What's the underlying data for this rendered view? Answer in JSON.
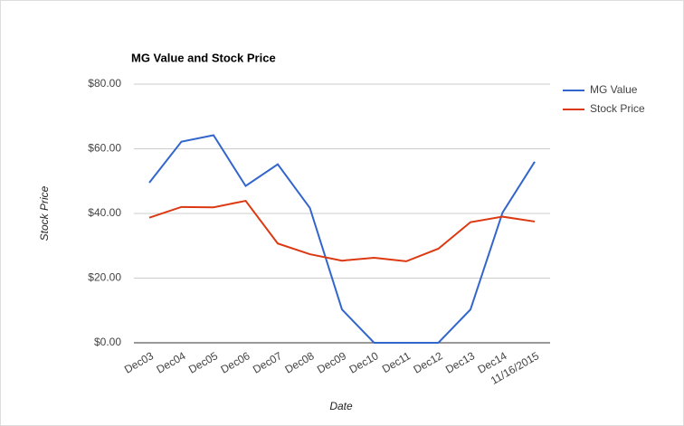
{
  "chart_data": {
    "type": "line",
    "title": "MG Value and Stock Price",
    "x_label": "Date",
    "y_label": "Stock Price",
    "categories": [
      "Dec03",
      "Dec04",
      "Dec05",
      "Dec06",
      "Dec07",
      "Dec08",
      "Dec09",
      "Dec10",
      "Dec11",
      "Dec12",
      "Dec13",
      "Dec14",
      "11/16/2015"
    ],
    "series": [
      {
        "name": "MG Value",
        "color": "#3366cc",
        "values": [
          49.5,
          62.2,
          64.2,
          48.5,
          55.2,
          41.7,
          10.3,
          0,
          0,
          0,
          10.3,
          40.3,
          56
        ]
      },
      {
        "name": "Stock Price",
        "color": "#dc3912",
        "values": [
          38.7,
          42.0,
          41.9,
          43.9,
          30.7,
          27.4,
          25.4,
          26.3,
          25.2,
          29.1,
          37.3,
          39.0,
          37.5
        ]
      }
    ],
    "ylim": [
      0,
      80
    ],
    "yticks": [
      {
        "value": 0,
        "label": "$0.00"
      },
      {
        "value": 20,
        "label": "$20.00"
      },
      {
        "value": 40,
        "label": "$40.00"
      },
      {
        "value": 60,
        "label": "$60.00"
      },
      {
        "value": 80,
        "label": "$80.00"
      }
    ],
    "grid": true,
    "legend": "right"
  }
}
